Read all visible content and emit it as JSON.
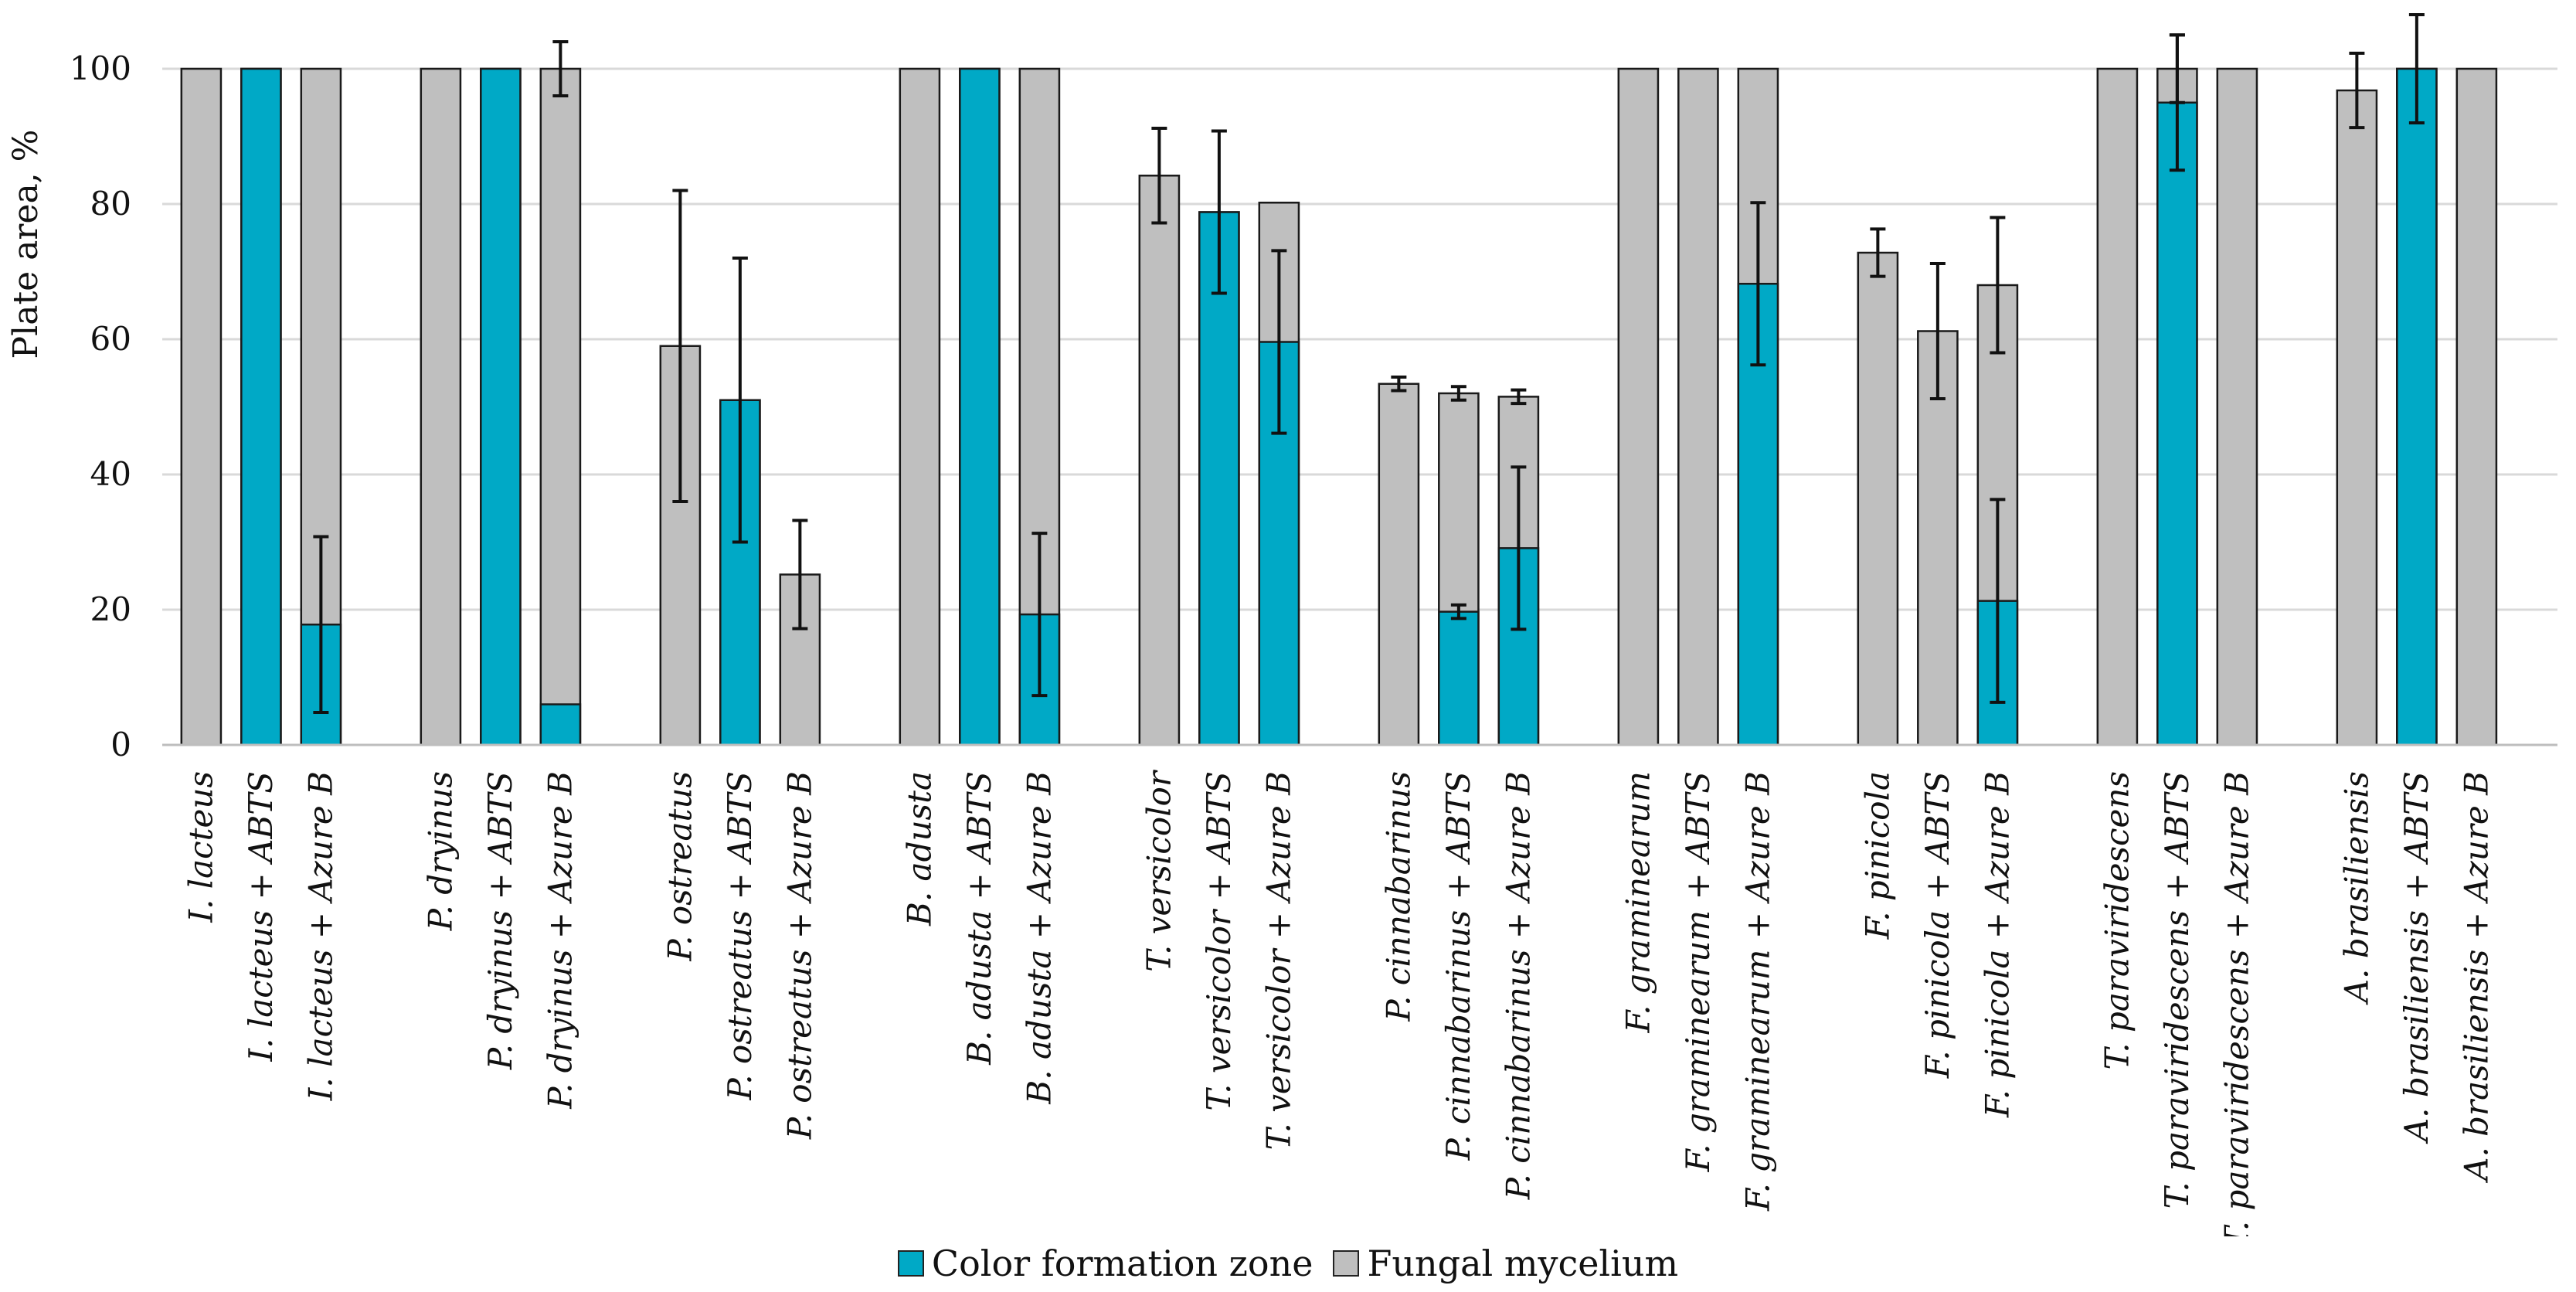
{
  "chart_data": {
    "type": "bar",
    "stacked": true,
    "title": "",
    "ylabel": "Plate area, %",
    "xlabel": "",
    "ylim": [
      0,
      100
    ],
    "yticks": [
      0,
      20,
      40,
      60,
      80,
      100
    ],
    "grid": true,
    "legend_position": "bottom-center",
    "colors": {
      "color_zone": "#00A9C6",
      "mycelium": "#BFBFBF",
      "grid": "#D9D9D9",
      "edge": "#1a1a1a"
    },
    "series": [
      {
        "name": "Color formation zone",
        "key": "color_zone"
      },
      {
        "name": "Fungal mycelium",
        "key": "mycelium"
      }
    ],
    "groups": [
      {
        "species": "I. lacteus",
        "bars": [
          {
            "label": "I. lacteus",
            "color_zone": 0,
            "total": 100,
            "err_total": 0,
            "err_zone": 0
          },
          {
            "label": "I. lacteus + ABTS",
            "color_zone": 100,
            "total": 100,
            "err_total": 0,
            "err_zone": 0
          },
          {
            "label": "I. lacteus + Azure B",
            "color_zone": 17.8,
            "total": 100,
            "err_total": 0,
            "err_zone": 13
          }
        ]
      },
      {
        "species": "P. dryinus",
        "bars": [
          {
            "label": "P. dryinus",
            "color_zone": 0,
            "total": 100,
            "err_total": 0,
            "err_zone": 0
          },
          {
            "label": "P. dryinus + ABTS",
            "color_zone": 100,
            "total": 100,
            "err_total": 0,
            "err_zone": 0
          },
          {
            "label": "P. dryinus + Azure B",
            "color_zone": 6,
            "total": 100,
            "err_total": 4,
            "err_zone": 0
          }
        ]
      },
      {
        "species": "P. ostreatus",
        "bars": [
          {
            "label": "P. ostreatus",
            "color_zone": 0,
            "total": 59,
            "err_total": 23,
            "err_zone": 0
          },
          {
            "label": "P. ostreatus + ABTS",
            "color_zone": 51,
            "total": 51,
            "err_total": 0,
            "err_zone": 21
          },
          {
            "label": "P. ostreatus + Azure B",
            "color_zone": 0,
            "total": 25.2,
            "err_total": 8,
            "err_zone": 0
          }
        ]
      },
      {
        "species": "B. adusta",
        "bars": [
          {
            "label": "B. adusta",
            "color_zone": 0,
            "total": 100,
            "err_total": 0,
            "err_zone": 0
          },
          {
            "label": "B. adusta + ABTS",
            "color_zone": 100,
            "total": 100,
            "err_total": 0,
            "err_zone": 0
          },
          {
            "label": "B. adusta + Azure B",
            "color_zone": 19.3,
            "total": 100,
            "err_total": 0,
            "err_zone": 12
          }
        ]
      },
      {
        "species": "T. versicolor",
        "bars": [
          {
            "label": "T. versicolor",
            "color_zone": 0,
            "total": 84.2,
            "err_total": 7,
            "err_zone": 0
          },
          {
            "label": "T. versicolor + ABTS",
            "color_zone": 78.8,
            "total": 78.8,
            "err_total": 0,
            "err_zone": 12
          },
          {
            "label": "T. versicolor +  Azure B",
            "color_zone": 59.6,
            "total": 80.2,
            "err_total": 0,
            "err_zone": 13.5
          }
        ]
      },
      {
        "species": "P. cinnabarinus",
        "bars": [
          {
            "label": "P. cinnabarinus",
            "color_zone": 0,
            "total": 53.4,
            "err_total": 1,
            "err_zone": 0
          },
          {
            "label": "P. cinnabarinus + ABTS",
            "color_zone": 19.7,
            "total": 52,
            "err_total": 1,
            "err_zone": 1
          },
          {
            "label": "P. cinnabarinus + Azure B",
            "color_zone": 29.1,
            "total": 51.5,
            "err_total": 1,
            "err_zone": 12
          }
        ]
      },
      {
        "species": "F. graminearum",
        "bars": [
          {
            "label": "F. graminearum",
            "color_zone": 0,
            "total": 100,
            "err_total": 0,
            "err_zone": 0
          },
          {
            "label": "F. graminearum + ABTS",
            "color_zone": 0,
            "total": 100,
            "err_total": 0,
            "err_zone": 0
          },
          {
            "label": "F. graminearum + Azure B",
            "color_zone": 68.2,
            "total": 100,
            "err_total": 0,
            "err_zone": 12
          }
        ]
      },
      {
        "species": "F. pinicola",
        "bars": [
          {
            "label": "F. pinicola",
            "color_zone": 0,
            "total": 72.8,
            "err_total": 3.5,
            "err_zone": 0
          },
          {
            "label": "F. pinicola + ABTS",
            "color_zone": 0,
            "total": 61.2,
            "err_total": 10,
            "err_zone": 0
          },
          {
            "label": "F. pinicola + Azure B",
            "color_zone": 21.3,
            "total": 68,
            "err_total": 10,
            "err_zone": 15
          }
        ]
      },
      {
        "species": "T. paraviridescens",
        "bars": [
          {
            "label": "T. paraviridescens",
            "color_zone": 0,
            "total": 100,
            "err_total": 0,
            "err_zone": 0
          },
          {
            "label": "T. paraviridescens + ABTS",
            "color_zone": 95,
            "total": 100,
            "err_total": 5,
            "err_zone": 10
          },
          {
            "label": "T. paraviridescens + Azure B",
            "color_zone": 0,
            "total": 100,
            "err_total": 0,
            "err_zone": 0
          }
        ]
      },
      {
        "species": "A. brasiliensis",
        "bars": [
          {
            "label": "A. brasiliensis",
            "color_zone": 0,
            "total": 96.8,
            "err_total": 5.5,
            "err_zone": 0
          },
          {
            "label": "A. brasiliensis  + ABTS",
            "color_zone": 100,
            "total": 100,
            "err_total": 0,
            "err_zone": 8
          },
          {
            "label": "A. brasiliensis + Azure B",
            "color_zone": 0,
            "total": 100,
            "err_total": 0,
            "err_zone": 0
          }
        ]
      }
    ]
  }
}
